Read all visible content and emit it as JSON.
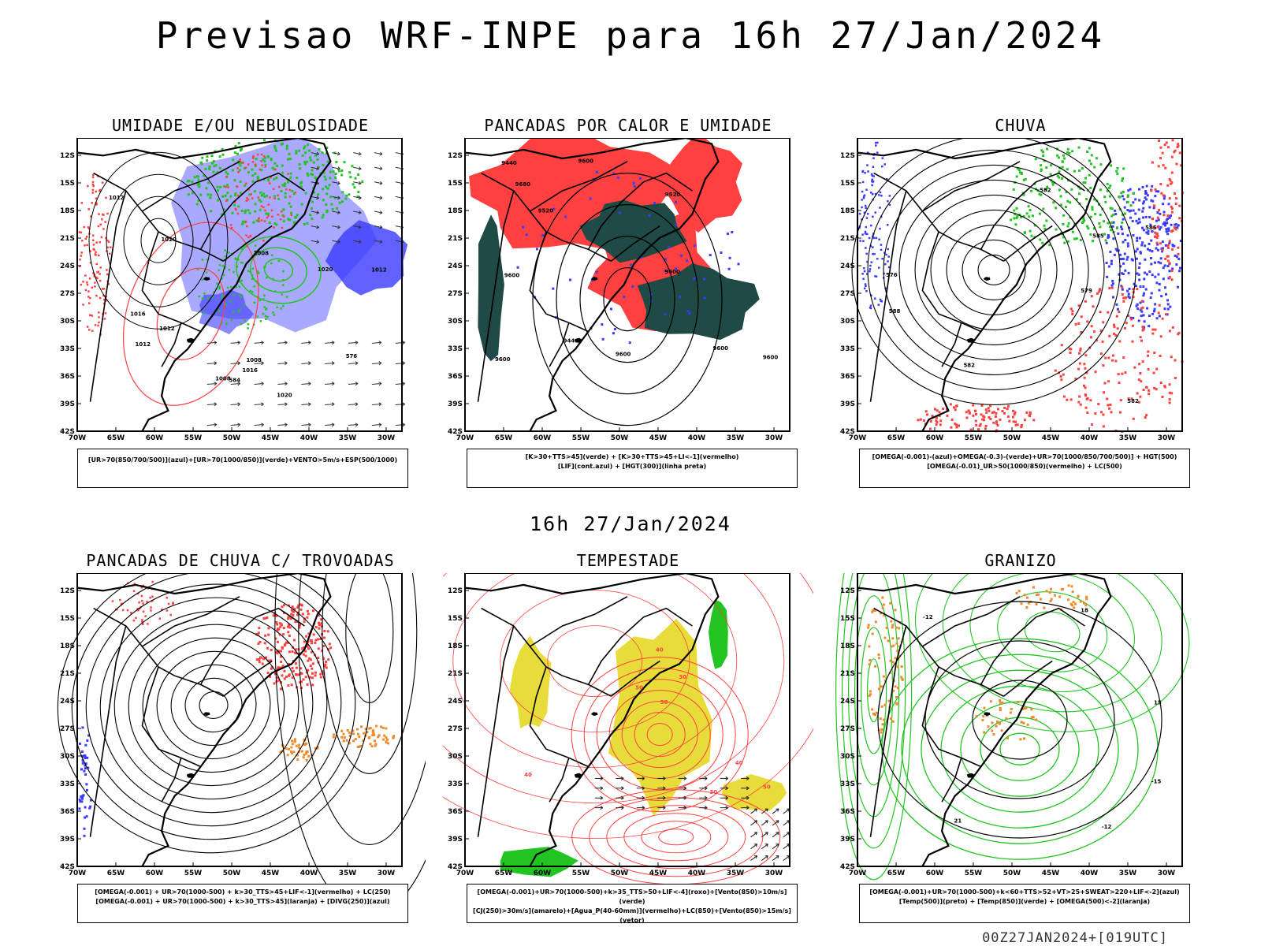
{
  "title": "Previsao WRF-INPE  para 16h 27/Jan/2024",
  "mid_date": "16h 27/Jan/2024",
  "footer": "00Z27JAN2024+[019UTC]",
  "axes": {
    "lat_labels": [
      "12S",
      "15S",
      "18S",
      "21S",
      "24S",
      "27S",
      "30S",
      "33S",
      "36S",
      "39S",
      "42S"
    ],
    "lon_labels": [
      "70W",
      "65W",
      "60W",
      "55W",
      "50W",
      "45W",
      "40W",
      "35W",
      "30W"
    ]
  },
  "panels": [
    {
      "id": "umidade",
      "title": "UMIDADE E/OU NEBULOSIDADE",
      "legend": [
        "[UR>70(850/700/500)](azul)+[UR>70(1000/850)](verde)+VENTO>5m/s+ESP(500/1000)"
      ],
      "contour_labels": [
        "1008",
        "1008",
        "1008",
        "1012",
        "1012",
        "1012",
        "1016",
        "1016",
        "1020",
        "1020",
        "1012",
        "576",
        "584",
        "1020"
      ]
    },
    {
      "id": "pancadas-calor",
      "title": "PANCADAS POR CALOR E UMIDADE",
      "legend": [
        "[K>30+TTS>45](verde) + [K>30+TTS>45+LI<-1](vermelho)",
        "[LIF](cont.azul) + [HGT(300)](linha preta)"
      ],
      "contour_labels": [
        "9680",
        "9600",
        "9600",
        "9600",
        "9520",
        "9440",
        "9440",
        "9600",
        "9600",
        "9520",
        "9600",
        "9600"
      ]
    },
    {
      "id": "chuva",
      "title": "CHUVA",
      "legend": [
        "[OMEGA(-0.001)-(azul)+OMEGA(-0.3)-(verde)+UR>70(1000/850/700/500)] + HGT(500)",
        "[OMEGA(-0.01)_UR>50(1000/850)(vermelho) + LC(500)"
      ],
      "contour_labels": [
        "585",
        "582",
        "579",
        "576",
        "582",
        "585",
        "588",
        "582"
      ]
    },
    {
      "id": "trovoadas",
      "title": "PANCADAS DE CHUVA C/ TROVOADAS",
      "legend": [
        "[OMEGA(-0.001) + UR>70(1000-500) + k>30_TTS>45+LIF<-1](vermelho) + LC(250)",
        "[OMEGA(-0.001) + UR>70(1000-500) + k>30_TTS>45](laranja) + [DIVG(250)](azul)"
      ],
      "contour_labels": []
    },
    {
      "id": "tempestade",
      "title": "TEMPESTADE",
      "legend": [
        "[OMEGA(-0.001)+UR>70(1000-500)+k>35_TTS>50+LIF<-4](roxo)+[Vento(850)>10m/s](verde)",
        "[CJ(250)>30m/s](amarelo)+[Agua_P(40-60mm)](vermelho)+LC(850)+[Vento(850)>15m/s](vetor)"
      ],
      "contour_labels": [
        "40",
        "50",
        "40",
        "50",
        "40",
        "30",
        "50",
        "30"
      ]
    },
    {
      "id": "granizo",
      "title": "GRANIZO",
      "legend": [
        "[OMEGA(-0.001)+UR>70(1000-500)+k<60+TTS>52+VT>25+SWEAT>220+LIF<-2](azul)",
        "[Temp(500)](preto) + [Temp(850)](verde) + [OMEGA(500)<-2](laranja)"
      ],
      "contour_labels": [
        "-12",
        "-12",
        "-15",
        "15",
        "21",
        "18"
      ]
    }
  ],
  "colors": {
    "blue": "#3a3aff",
    "lightblue": "#9a9aff",
    "green": "#22c422",
    "red": "#ff4040",
    "darkteal": "#1f4a46",
    "yellow": "#e8dc3a",
    "orange": "#f08a2a",
    "black": "#000000"
  }
}
